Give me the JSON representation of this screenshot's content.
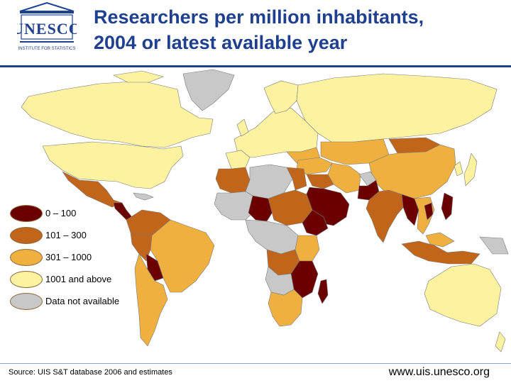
{
  "logo": {
    "text": "UNESCO",
    "subtitle": "INSTITUTE FOR STATISTICS"
  },
  "title": {
    "line1": "Researchers per million inhabitants,",
    "line2": "2004 or latest available year"
  },
  "legend": [
    {
      "label": "0 – 100",
      "color": "#6b0000"
    },
    {
      "label": "101 – 300",
      "color": "#c0651a"
    },
    {
      "label": "301 – 1000",
      "color": "#f0b040"
    },
    {
      "label": "1001 and above",
      "color": "#fdf2a0"
    },
    {
      "label": "Data not available",
      "color": "#c8c8c8"
    }
  ],
  "footer": {
    "source": "Source: UIS S&T database 2006 and estimates",
    "url": "www.uis.unesco.org"
  },
  "colors": {
    "title": "#1f3f8f",
    "ocean": "#ffffff",
    "border": "#7a7a7a"
  }
}
